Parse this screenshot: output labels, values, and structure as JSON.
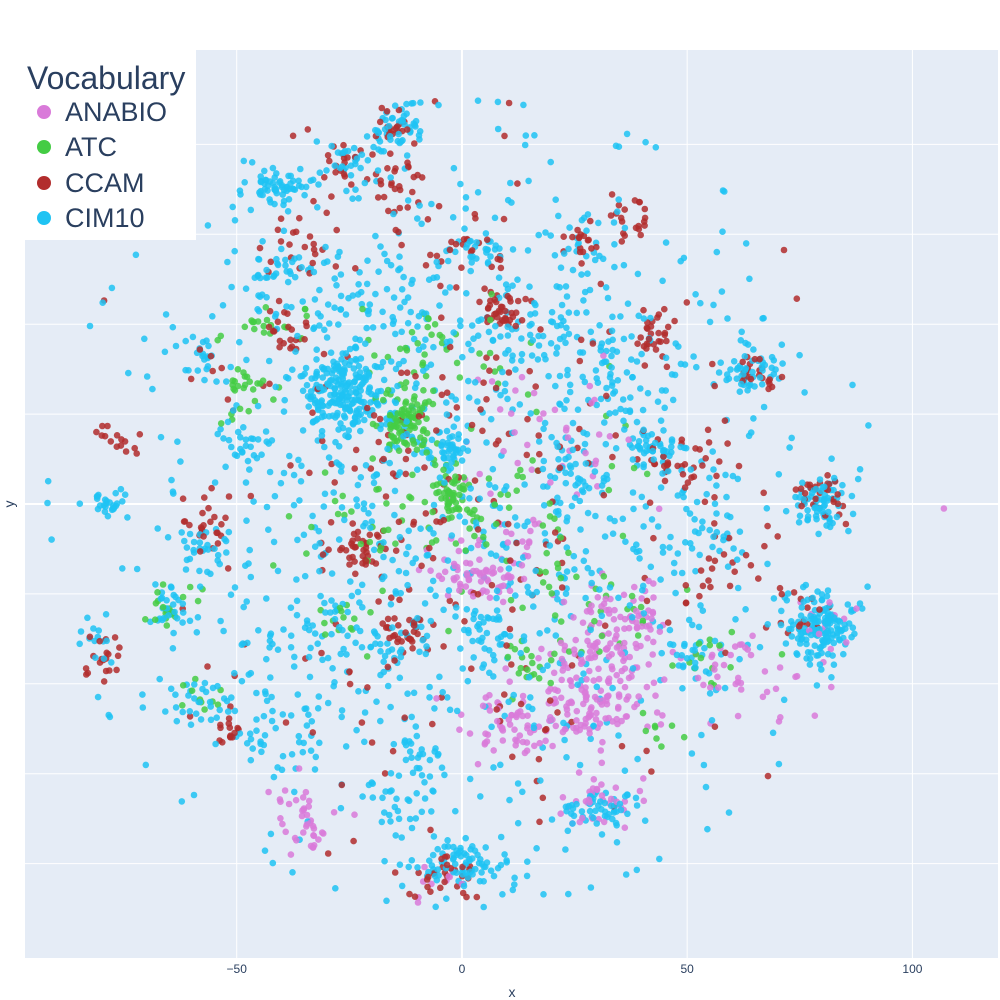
{
  "chart_data": {
    "type": "scatter",
    "title": "",
    "xlabel": "x",
    "ylabel": "y",
    "xlim": [
      -97,
      119
    ],
    "ylim": [
      -101,
      101
    ],
    "x_ticks": [
      -50,
      0,
      50,
      100
    ],
    "y_gridlines": [
      -80,
      -60,
      -40,
      -20,
      0,
      20,
      40,
      60,
      80
    ],
    "grid": true,
    "plot_background": "#e5ecf6",
    "legend": {
      "title": "Vocabulary",
      "placement": "top-left"
    },
    "series": [
      {
        "name": "ANABIO",
        "color": "#d97ad9",
        "clusters": [
          {
            "x": 28,
            "y": -42,
            "sx": 7,
            "sy": 6,
            "n": 140
          },
          {
            "x": 35,
            "y": -27,
            "sx": 6,
            "sy": 5,
            "n": 90
          },
          {
            "x": 3,
            "y": -16,
            "sx": 5,
            "sy": 3,
            "n": 70
          },
          {
            "x": 10,
            "y": -50,
            "sx": 6,
            "sy": 4,
            "n": 60
          },
          {
            "x": 30,
            "y": -66,
            "sx": 6,
            "sy": 3,
            "n": 35
          },
          {
            "x": -33,
            "y": -73,
            "sx": 4,
            "sy": 3,
            "n": 25
          },
          {
            "x": -37,
            "y": -66,
            "sx": 3,
            "sy": 3,
            "n": 15
          },
          {
            "x": 60,
            "y": -34,
            "sx": 3,
            "sy": 3,
            "n": 15
          },
          {
            "x": 13,
            "y": -9,
            "sx": 3,
            "sy": 3,
            "n": 15
          },
          {
            "x": 20,
            "y": 15,
            "sx": 10,
            "sy": 8,
            "n": 40
          },
          {
            "x": 65,
            "y": -38,
            "sx": 12,
            "sy": 6,
            "n": 25
          },
          {
            "x": -7,
            "y": -85,
            "sx": 3,
            "sy": 3,
            "n": 10
          },
          {
            "x": 80,
            "y": -25,
            "sx": 4,
            "sy": 3,
            "n": 12
          }
        ],
        "points": [
          [
            107,
            -1
          ]
        ]
      },
      {
        "name": "ATC",
        "color": "#44cc44",
        "clusters": [
          {
            "x": -13,
            "y": 18,
            "sx": 3,
            "sy": 4,
            "n": 90
          },
          {
            "x": -2,
            "y": 2,
            "sx": 3,
            "sy": 3,
            "n": 60
          },
          {
            "x": -47,
            "y": 25,
            "sx": 3,
            "sy": 3,
            "n": 25
          },
          {
            "x": -65,
            "y": -23,
            "sx": 3,
            "sy": 2,
            "n": 20
          },
          {
            "x": -8,
            "y": 33,
            "sx": 8,
            "sy": 6,
            "n": 40
          },
          {
            "x": -28,
            "y": -27,
            "sx": 3,
            "sy": 3,
            "n": 15
          },
          {
            "x": 15,
            "y": -36,
            "sx": 3,
            "sy": 4,
            "n": 20
          },
          {
            "x": -42,
            "y": 40,
            "sx": 5,
            "sy": 3,
            "n": 20
          },
          {
            "x": 10,
            "y": 0,
            "sx": 15,
            "sy": 15,
            "n": 60
          },
          {
            "x": 55,
            "y": -33,
            "sx": 5,
            "sy": 5,
            "n": 15
          },
          {
            "x": -58,
            "y": -43,
            "sx": 3,
            "sy": 2,
            "n": 10
          },
          {
            "x": 43,
            "y": -50,
            "sx": 3,
            "sy": 3,
            "n": 8
          },
          {
            "x": -20,
            "y": -5,
            "sx": 10,
            "sy": 8,
            "n": 30
          },
          {
            "x": 30,
            "y": -22,
            "sx": 8,
            "sy": 6,
            "n": 25
          }
        ],
        "points": []
      },
      {
        "name": "CCAM",
        "color": "#b22d2d",
        "clusters": [
          {
            "x": -15,
            "y": 82,
            "sx": 2,
            "sy": 2,
            "n": 20
          },
          {
            "x": -25,
            "y": 76,
            "sx": 3,
            "sy": 3,
            "n": 20
          },
          {
            "x": 9,
            "y": 43,
            "sx": 3,
            "sy": 2,
            "n": 40
          },
          {
            "x": 43,
            "y": 37,
            "sx": 2,
            "sy": 3,
            "n": 30
          },
          {
            "x": 65,
            "y": 29,
            "sx": 3,
            "sy": 2,
            "n": 25
          },
          {
            "x": 50,
            "y": 8,
            "sx": 5,
            "sy": 4,
            "n": 35
          },
          {
            "x": 80,
            "y": 2,
            "sx": 3,
            "sy": 3,
            "n": 30
          },
          {
            "x": -57,
            "y": -5,
            "sx": 3,
            "sy": 3,
            "n": 25
          },
          {
            "x": -22,
            "y": -10,
            "sx": 4,
            "sy": 3,
            "n": 40
          },
          {
            "x": -12,
            "y": -28,
            "sx": 3,
            "sy": 3,
            "n": 30
          },
          {
            "x": -80,
            "y": -35,
            "sx": 2,
            "sy": 3,
            "n": 20
          },
          {
            "x": -52,
            "y": -50,
            "sx": 2,
            "sy": 2,
            "n": 15
          },
          {
            "x": -5,
            "y": -83,
            "sx": 4,
            "sy": 3,
            "n": 30
          },
          {
            "x": -75,
            "y": 14,
            "sx": 3,
            "sy": 2,
            "n": 15
          },
          {
            "x": 3,
            "y": 57,
            "sx": 4,
            "sy": 3,
            "n": 20
          },
          {
            "x": -40,
            "y": 38,
            "sx": 3,
            "sy": 3,
            "n": 20
          },
          {
            "x": 58,
            "y": -14,
            "sx": 5,
            "sy": 4,
            "n": 20
          },
          {
            "x": 38,
            "y": 63,
            "sx": 3,
            "sy": 3,
            "n": 20
          },
          {
            "x": 27,
            "y": 57,
            "sx": 3,
            "sy": 3,
            "n": 15
          },
          {
            "x": 0,
            "y": 0,
            "sx": 30,
            "sy": 35,
            "n": 250
          },
          {
            "x": -14,
            "y": 72,
            "sx": 4,
            "sy": 4,
            "n": 25
          },
          {
            "x": -37,
            "y": 58,
            "sx": 4,
            "sy": 4,
            "n": 20
          },
          {
            "x": 75,
            "y": -25,
            "sx": 4,
            "sy": 3,
            "n": 15
          }
        ],
        "points": []
      },
      {
        "name": "CIM10",
        "color": "#1fc3f3",
        "clusters": [
          {
            "x": -26,
            "y": 25,
            "sx": 5,
            "sy": 5,
            "n": 220
          },
          {
            "x": 80,
            "y": -28,
            "sx": 4,
            "sy": 4,
            "n": 150
          },
          {
            "x": 80,
            "y": 0,
            "sx": 3,
            "sy": 3,
            "n": 70
          },
          {
            "x": -40,
            "y": 70,
            "sx": 4,
            "sy": 2,
            "n": 60
          },
          {
            "x": -14,
            "y": 83,
            "sx": 3,
            "sy": 2,
            "n": 40
          },
          {
            "x": -24,
            "y": 76,
            "sx": 3,
            "sy": 2,
            "n": 30
          },
          {
            "x": 0,
            "y": -80,
            "sx": 6,
            "sy": 3,
            "n": 80
          },
          {
            "x": 30,
            "y": -68,
            "sx": 5,
            "sy": 2,
            "n": 50
          },
          {
            "x": 65,
            "y": 30,
            "sx": 4,
            "sy": 3,
            "n": 50
          },
          {
            "x": 43,
            "y": 12,
            "sx": 3,
            "sy": 2,
            "n": 40
          },
          {
            "x": -3,
            "y": 12,
            "sx": 3,
            "sy": 2,
            "n": 40
          },
          {
            "x": -78,
            "y": 0,
            "sx": 2,
            "sy": 2,
            "n": 25
          },
          {
            "x": -65,
            "y": -23,
            "sx": 2,
            "sy": 2,
            "n": 25
          },
          {
            "x": -58,
            "y": -10,
            "sx": 3,
            "sy": 3,
            "n": 25
          },
          {
            "x": -58,
            "y": 34,
            "sx": 2,
            "sy": 2,
            "n": 15
          },
          {
            "x": -40,
            "y": 52,
            "sx": 4,
            "sy": 3,
            "n": 30
          },
          {
            "x": 4,
            "y": 57,
            "sx": 3,
            "sy": 2,
            "n": 25
          },
          {
            "x": 27,
            "y": 58,
            "sx": 4,
            "sy": 3,
            "n": 25
          },
          {
            "x": 52,
            "y": -32,
            "sx": 3,
            "sy": 3,
            "n": 25
          },
          {
            "x": -8,
            "y": -55,
            "sx": 4,
            "sy": 3,
            "n": 25
          },
          {
            "x": 5,
            "y": -28,
            "sx": 3,
            "sy": 3,
            "n": 25
          },
          {
            "x": -48,
            "y": 14,
            "sx": 3,
            "sy": 3,
            "n": 25
          },
          {
            "x": -82,
            "y": -30,
            "sx": 2,
            "sy": 2,
            "n": 12
          },
          {
            "x": 0,
            "y": 0,
            "sx": 38,
            "sy": 40,
            "n": 900
          },
          {
            "x": 17,
            "y": 35,
            "sx": 10,
            "sy": 8,
            "n": 60
          },
          {
            "x": -20,
            "y": 45,
            "sx": 10,
            "sy": 5,
            "n": 60
          },
          {
            "x": 30,
            "y": 30,
            "sx": 8,
            "sy": 8,
            "n": 50
          },
          {
            "x": 25,
            "y": 5,
            "sx": 5,
            "sy": 5,
            "n": 40
          },
          {
            "x": -30,
            "y": -35,
            "sx": 10,
            "sy": 8,
            "n": 60
          },
          {
            "x": -40,
            "y": -50,
            "sx": 8,
            "sy": 5,
            "n": 40
          },
          {
            "x": 55,
            "y": -5,
            "sx": 5,
            "sy": 6,
            "n": 40
          },
          {
            "x": -12,
            "y": -68,
            "sx": 5,
            "sy": 3,
            "n": 25
          },
          {
            "x": -60,
            "y": -45,
            "sx": 4,
            "sy": 3,
            "n": 25
          }
        ],
        "points": []
      }
    ]
  }
}
